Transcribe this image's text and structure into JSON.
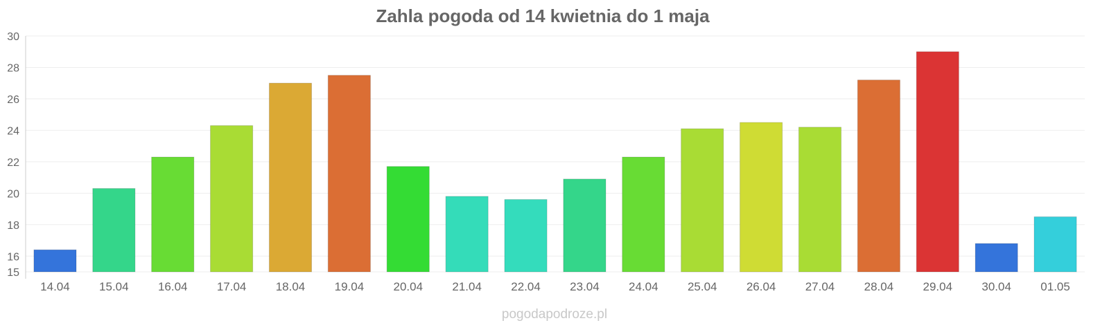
{
  "chart_data": {
    "type": "bar",
    "title": "Zahla pogoda od 14 kwietnia do 1 maja",
    "xlabel": "",
    "ylabel": "",
    "ylim": [
      15,
      30
    ],
    "yticks": [
      "15",
      "16",
      "18",
      "20",
      "22",
      "24",
      "26",
      "28",
      "30"
    ],
    "grid": true,
    "categories": [
      "14.04",
      "15.04",
      "16.04",
      "17.04",
      "18.04",
      "19.04",
      "20.04",
      "21.04",
      "22.04",
      "23.04",
      "24.04",
      "25.04",
      "26.04",
      "27.04",
      "28.04",
      "29.04",
      "30.04",
      "01.05"
    ],
    "values": [
      16.4,
      20.3,
      22.3,
      24.3,
      27.0,
      27.5,
      21.7,
      19.8,
      19.6,
      20.9,
      22.3,
      24.1,
      24.5,
      24.2,
      27.2,
      29.0,
      16.8,
      18.5
    ],
    "colors": [
      "#3474db",
      "#34d68a",
      "#68dc34",
      "#a9dc34",
      "#dba934",
      "#db6e34",
      "#34dc34",
      "#34dcb9",
      "#34dcbc",
      "#34d68a",
      "#68dc34",
      "#a9dc34",
      "#cfdc34",
      "#a9dc34",
      "#db6e34",
      "#db3434",
      "#3474db",
      "#34cfdb"
    ]
  },
  "credit": "pogodapodroze.pl"
}
